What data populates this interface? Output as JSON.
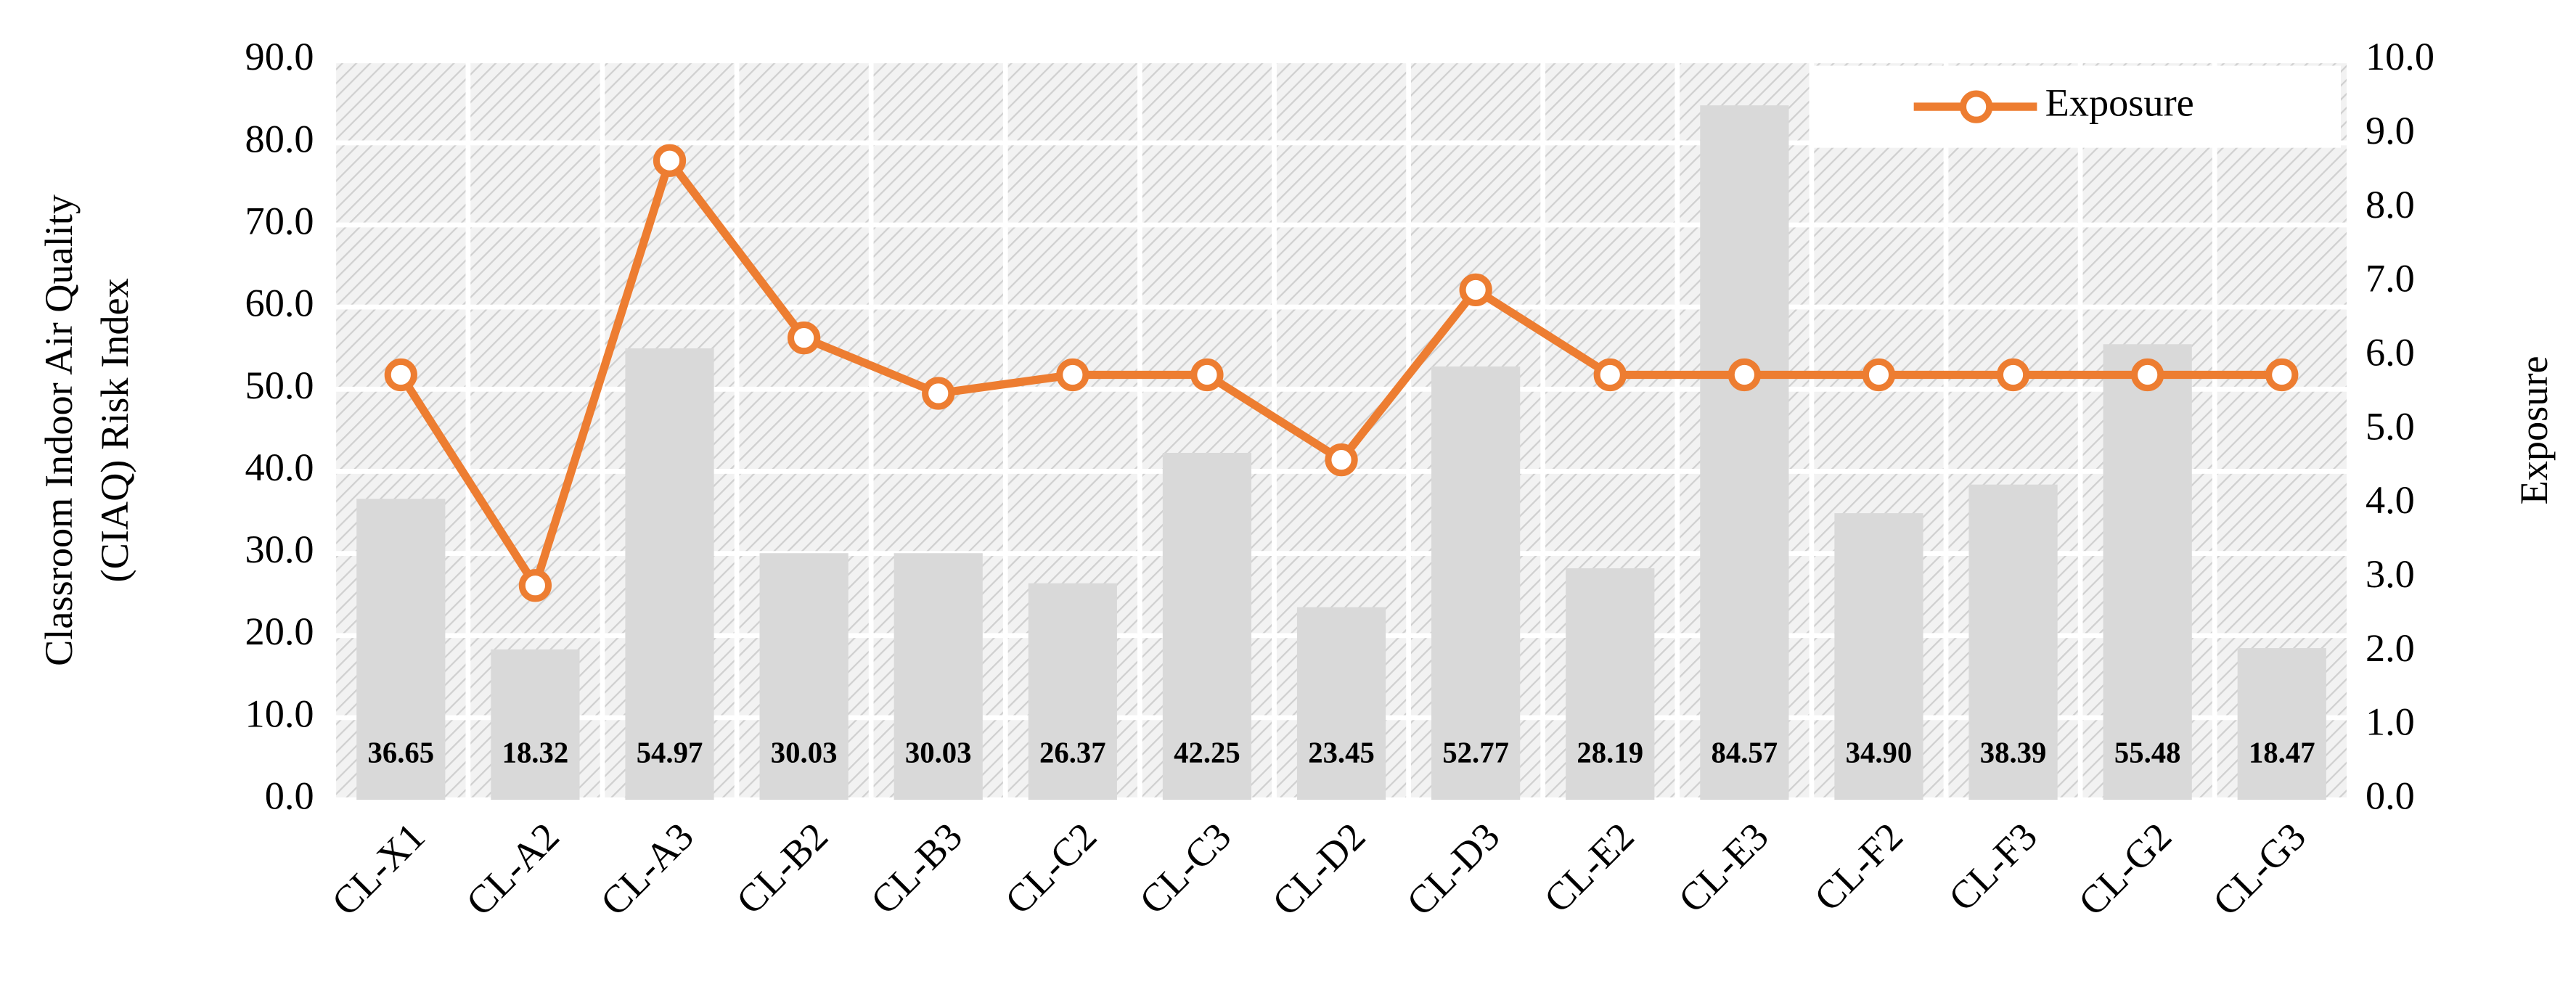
{
  "chart_data": {
    "type": "bar_line",
    "categories": [
      "CL-X1",
      "CL-A2",
      "CL-A3",
      "CL-B2",
      "CL-B3",
      "CL-C2",
      "CL-C3",
      "CL-D2",
      "CL-D3",
      "CL-E2",
      "CL-E3",
      "CL-F2",
      "CL-F3",
      "CL-G2",
      "CL-G3"
    ],
    "series": [
      {
        "type": "bar",
        "color": "#d9d9d9",
        "values": [
          36.65,
          18.32,
          54.97,
          30.03,
          30.03,
          26.37,
          42.25,
          23.45,
          52.77,
          28.19,
          84.57,
          34.9,
          38.39,
          55.48,
          18.47
        ],
        "value_labels": [
          "36.65",
          "18.32",
          "54.97",
          "30.03",
          "30.03",
          "26.37",
          "42.25",
          "23.45",
          "52.77",
          "28.19",
          "84.57",
          "34.90",
          "38.39",
          "55.48",
          "18.47"
        ]
      },
      {
        "type": "line",
        "name": "Exposure",
        "color": "#ed7d31",
        "axis": "y2",
        "values": [
          5.75,
          2.9,
          8.65,
          6.25,
          5.5,
          5.75,
          5.75,
          4.6,
          6.9,
          5.75,
          5.75,
          5.75,
          5.75,
          5.75,
          5.75
        ]
      }
    ],
    "ylabel_lines": [
      "Classroom Indoor Air Quality",
      "(CIAQ) Risk Index"
    ],
    "y2label": "Exposure",
    "ylim": [
      0,
      90
    ],
    "yticks": [
      {
        "value": 0,
        "label": "0.0"
      },
      {
        "value": 10,
        "label": "10.0"
      },
      {
        "value": 20,
        "label": "20.0"
      },
      {
        "value": 30,
        "label": "30.0"
      },
      {
        "value": 40,
        "label": "40.0"
      },
      {
        "value": 50,
        "label": "50.0"
      },
      {
        "value": 60,
        "label": "60.0"
      },
      {
        "value": 70,
        "label": "70.0"
      },
      {
        "value": 80,
        "label": "80.0"
      },
      {
        "value": 90,
        "label": "90.0"
      }
    ],
    "y2lim": [
      0,
      10
    ],
    "y2ticks": [
      {
        "value": 0,
        "label": "0.0"
      },
      {
        "value": 1,
        "label": "1.0"
      },
      {
        "value": 2,
        "label": "2.0"
      },
      {
        "value": 3,
        "label": "3.0"
      },
      {
        "value": 4,
        "label": "4.0"
      },
      {
        "value": 5,
        "label": "5.0"
      },
      {
        "value": 6,
        "label": "6.0"
      },
      {
        "value": 7,
        "label": "7.0"
      },
      {
        "value": 8,
        "label": "8.0"
      },
      {
        "value": 9,
        "label": "9.0"
      },
      {
        "value": 10,
        "label": "10.0"
      }
    ],
    "grid": true,
    "legend": "upper right"
  }
}
